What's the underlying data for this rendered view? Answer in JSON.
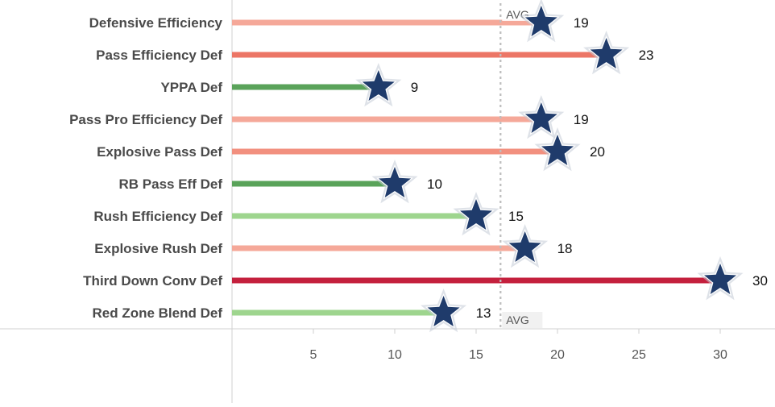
{
  "chart_data": {
    "type": "bar",
    "orientation": "horizontal",
    "title": "",
    "xlabel": "",
    "ylabel": "",
    "xlim": [
      0,
      34
    ],
    "x_ticks": [
      5,
      10,
      15,
      20,
      25,
      30
    ],
    "grid": false,
    "categories": [
      "Defensive Efficiency",
      "Pass Efficiency Def",
      "YPPA Def",
      "Pass Pro Efficiency Def",
      "Explosive Pass Def",
      "RB Pass Eff Def",
      "Rush Efficiency Def",
      "Explosive Rush Def",
      "Third Down Conv Def",
      "Red Zone Blend Def"
    ],
    "values": [
      19,
      23,
      9,
      19,
      20,
      10,
      15,
      18,
      30,
      13
    ],
    "bar_colors": [
      "#f5a899",
      "#ec7666",
      "#5aa35a",
      "#f5a899",
      "#f2907f",
      "#5aa35a",
      "#9ed58e",
      "#f5a899",
      "#c4203d",
      "#9ed58e"
    ],
    "marker": "star",
    "marker_color": "#1f3b6b",
    "reference_line": {
      "label": "AVG",
      "value": 16.5
    }
  }
}
